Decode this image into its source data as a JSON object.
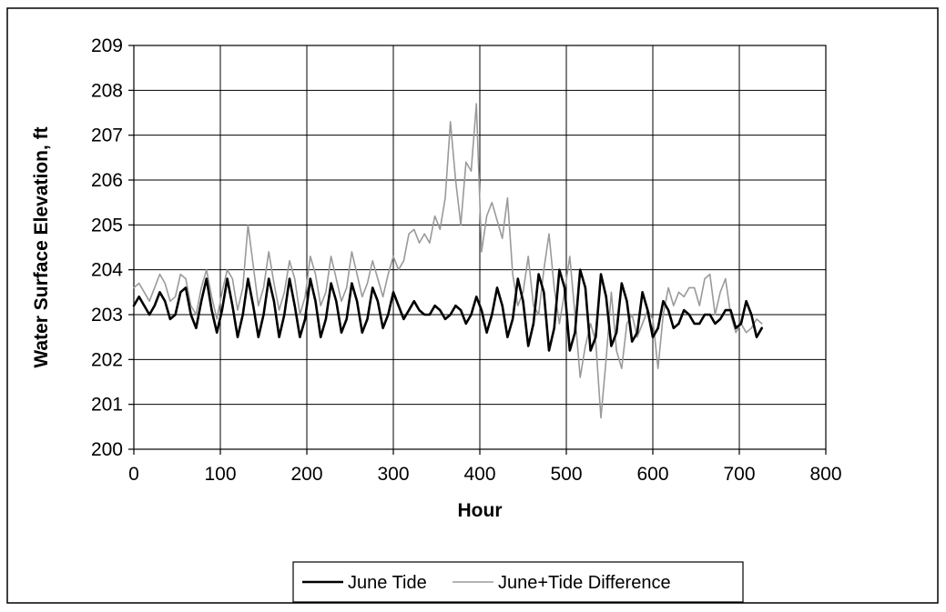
{
  "chart_data": {
    "type": "line",
    "title": "",
    "xlabel": "Hour",
    "ylabel": "Water Surface Elevation, ft",
    "xlim": [
      0,
      800
    ],
    "ylim": [
      200,
      209
    ],
    "xticks": [
      0,
      100,
      200,
      300,
      400,
      500,
      600,
      700,
      800
    ],
    "yticks": [
      200,
      201,
      202,
      203,
      204,
      205,
      206,
      207,
      208,
      209
    ],
    "xtick_labels": [
      "0",
      "100",
      "200",
      "300",
      "400",
      "500",
      "600",
      "700",
      "800"
    ],
    "ytick_labels": [
      "200",
      "201",
      "202",
      "203",
      "204",
      "205",
      "206",
      "207",
      "208",
      "209"
    ],
    "grid": true,
    "legend": "bottom-center",
    "series": [
      {
        "name": "June Tide",
        "color": "#000000",
        "x": [
          0,
          6,
          12,
          18,
          24,
          30,
          36,
          42,
          48,
          54,
          60,
          66,
          72,
          78,
          84,
          90,
          96,
          102,
          108,
          114,
          120,
          126,
          132,
          138,
          144,
          150,
          156,
          162,
          168,
          174,
          180,
          186,
          192,
          198,
          204,
          210,
          216,
          222,
          228,
          234,
          240,
          246,
          252,
          258,
          264,
          270,
          276,
          282,
          288,
          294,
          300,
          306,
          312,
          318,
          324,
          330,
          336,
          342,
          348,
          354,
          360,
          366,
          372,
          378,
          384,
          390,
          396,
          402,
          408,
          414,
          420,
          426,
          432,
          438,
          444,
          450,
          456,
          462,
          468,
          474,
          480,
          486,
          492,
          498,
          504,
          510,
          516,
          522,
          528,
          534,
          540,
          546,
          552,
          558,
          564,
          570,
          576,
          582,
          588,
          594,
          600,
          606,
          612,
          618,
          624,
          630,
          636,
          642,
          648,
          654,
          660,
          666,
          672,
          678,
          684,
          690,
          696,
          702,
          708,
          714,
          720,
          726
        ],
        "values": [
          203.2,
          203.4,
          203.2,
          203.0,
          203.2,
          203.5,
          203.3,
          202.9,
          203.0,
          203.5,
          203.6,
          203.0,
          202.7,
          203.3,
          203.8,
          203.1,
          202.6,
          203.1,
          203.8,
          203.2,
          202.5,
          203.0,
          203.8,
          203.2,
          202.5,
          203.0,
          203.8,
          203.3,
          202.5,
          203.0,
          203.8,
          203.2,
          202.5,
          202.9,
          203.8,
          203.3,
          202.5,
          202.9,
          203.7,
          203.3,
          202.6,
          202.9,
          203.7,
          203.3,
          202.6,
          202.9,
          203.6,
          203.3,
          202.7,
          203.0,
          203.5,
          203.2,
          202.9,
          203.1,
          203.3,
          203.1,
          203.0,
          203.0,
          203.2,
          203.1,
          202.9,
          203.0,
          203.2,
          203.1,
          202.8,
          203.0,
          203.4,
          203.1,
          202.6,
          203.0,
          203.6,
          203.2,
          202.5,
          202.9,
          203.8,
          203.3,
          202.3,
          202.8,
          203.9,
          203.5,
          202.2,
          202.7,
          204.0,
          203.6,
          202.2,
          202.6,
          204.0,
          203.6,
          202.2,
          202.5,
          203.9,
          203.4,
          202.3,
          202.6,
          203.7,
          203.3,
          202.4,
          202.6,
          203.5,
          203.1,
          202.5,
          202.7,
          203.3,
          203.1,
          202.7,
          202.8,
          203.1,
          203.0,
          202.8,
          202.8,
          203.0,
          203.0,
          202.8,
          202.9,
          203.1,
          203.1,
          202.7,
          202.8,
          203.3,
          203.0,
          202.5,
          202.7
        ]
      },
      {
        "name": "June+Tide Difference",
        "color": "#9a9a9a",
        "x": [
          0,
          6,
          12,
          18,
          24,
          30,
          36,
          42,
          48,
          54,
          60,
          66,
          72,
          78,
          84,
          90,
          96,
          102,
          108,
          114,
          120,
          126,
          132,
          138,
          144,
          150,
          156,
          162,
          168,
          174,
          180,
          186,
          192,
          198,
          204,
          210,
          216,
          222,
          228,
          234,
          240,
          246,
          252,
          258,
          264,
          270,
          276,
          282,
          288,
          294,
          300,
          306,
          312,
          318,
          324,
          330,
          336,
          342,
          348,
          354,
          360,
          366,
          372,
          378,
          384,
          390,
          396,
          402,
          408,
          414,
          420,
          426,
          432,
          438,
          444,
          450,
          456,
          462,
          468,
          474,
          480,
          486,
          492,
          498,
          504,
          510,
          516,
          522,
          528,
          534,
          540,
          546,
          552,
          558,
          564,
          570,
          576,
          582,
          588,
          594,
          600,
          606,
          612,
          618,
          624,
          630,
          636,
          642,
          648,
          654,
          660,
          666,
          672,
          678,
          684,
          690,
          696,
          702,
          708,
          714,
          720,
          726
        ],
        "values": [
          203.6,
          203.7,
          203.5,
          203.3,
          203.6,
          203.9,
          203.7,
          203.3,
          203.4,
          203.9,
          203.8,
          203.2,
          203.0,
          203.6,
          204.0,
          203.4,
          202.9,
          203.5,
          204.0,
          203.8,
          203.1,
          203.6,
          205.0,
          204.1,
          203.2,
          203.6,
          204.4,
          203.7,
          203.1,
          203.5,
          204.2,
          203.8,
          203.0,
          203.4,
          204.3,
          203.9,
          203.2,
          203.5,
          204.3,
          203.8,
          203.3,
          203.6,
          204.4,
          203.9,
          203.4,
          203.7,
          204.2,
          203.8,
          203.4,
          203.9,
          204.3,
          204.0,
          204.2,
          204.8,
          204.9,
          204.6,
          204.8,
          204.6,
          205.2,
          204.9,
          205.6,
          207.3,
          206.0,
          205.0,
          206.4,
          206.2,
          207.7,
          204.4,
          205.2,
          205.5,
          205.1,
          204.7,
          205.6,
          203.9,
          203.2,
          203.5,
          204.3,
          203.2,
          203.0,
          204.0,
          204.8,
          203.6,
          202.8,
          203.5,
          204.3,
          203.0,
          201.6,
          202.3,
          202.8,
          202.4,
          200.7,
          202.0,
          203.5,
          202.2,
          201.8,
          202.8,
          203.0,
          202.5,
          202.8,
          203.1,
          202.9,
          201.8,
          203.0,
          203.6,
          203.2,
          203.5,
          203.4,
          203.6,
          203.6,
          203.2,
          203.8,
          203.9,
          203.0,
          203.5,
          203.8,
          203.0,
          202.6,
          202.8,
          202.6,
          202.7,
          202.9,
          202.8
        ]
      }
    ]
  }
}
